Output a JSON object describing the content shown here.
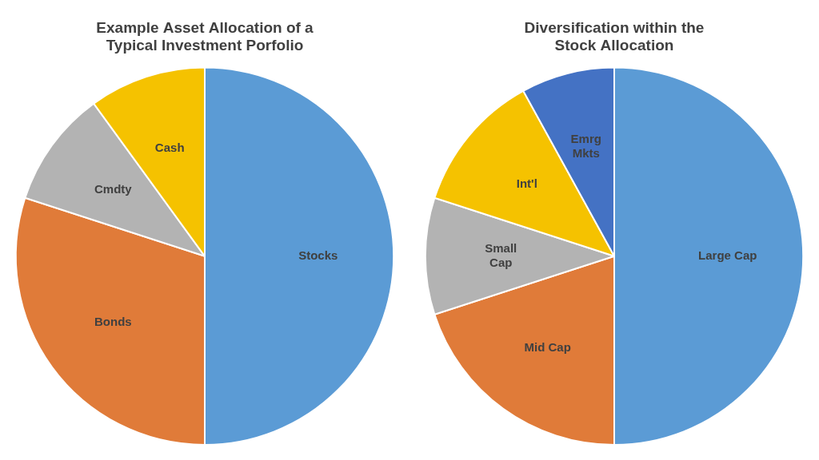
{
  "chart_data": [
    {
      "type": "pie",
      "title": "Example Asset Allocation of a\nTypical Investment Porfolio",
      "categories": [
        "Stocks",
        "Bonds",
        "Cmdty",
        "Cash"
      ],
      "values": [
        50,
        30,
        10,
        10
      ],
      "colors": [
        "#5b9bd5",
        "#e07b39",
        "#b3b3b3",
        "#f5c200"
      ]
    },
    {
      "type": "pie",
      "title": "Diversification within the\nStock Allocation",
      "categories": [
        "Large Cap",
        "Mid Cap",
        "Small\nCap",
        "Int'l",
        "Emrg\nMkts"
      ],
      "values": [
        50,
        20,
        10,
        12,
        8
      ],
      "colors": [
        "#5b9bd5",
        "#e07b39",
        "#b3b3b3",
        "#f5c200",
        "#4472c4"
      ]
    }
  ]
}
